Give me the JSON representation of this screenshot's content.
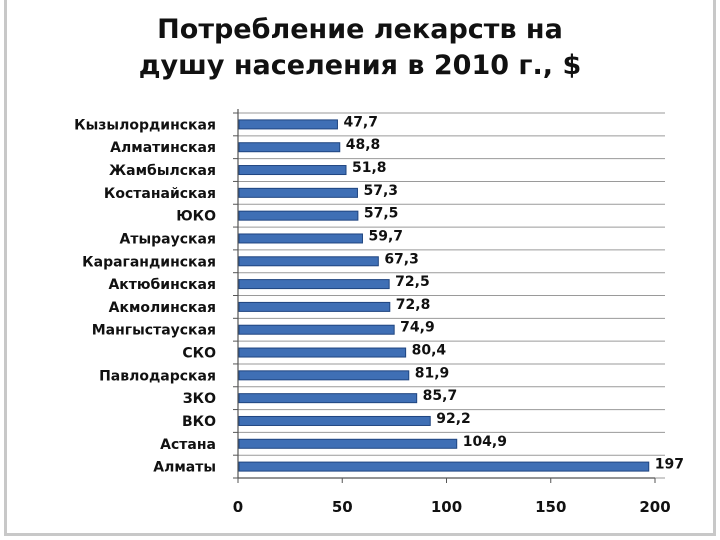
{
  "chart_data": {
    "type": "bar",
    "orientation": "horizontal",
    "title_lines": [
      "Потребление лекарств на",
      "душу населения в 2010 г., $"
    ],
    "categories": [
      "Кызылординская",
      "Алматинская",
      "Жамбылская",
      "Костанайская",
      "ЮКО",
      "Атырауская",
      "Карагандинская",
      "Актюбинская",
      "Акмолинская",
      "Мангыстауская",
      "СКО",
      "Павлодарская",
      "ЗКО",
      "ВКО",
      "Астана",
      "Алматы"
    ],
    "values": [
      47.7,
      48.8,
      51.8,
      57.3,
      57.5,
      59.7,
      67.3,
      72.5,
      72.8,
      74.9,
      80.4,
      81.9,
      85.7,
      92.2,
      104.9,
      197
    ],
    "value_labels": [
      "47,7",
      "48,8",
      "51,8",
      "57,3",
      "57,5",
      "59,7",
      "67,3",
      "72,5",
      "72,8",
      "74,9",
      "80,4",
      "81,9",
      "85,7",
      "92,2",
      "104,9",
      "197"
    ],
    "xlim": [
      0,
      200
    ],
    "xticks": [
      0,
      50,
      100,
      150,
      200
    ],
    "grid": true,
    "legend": "none",
    "bar_color": "#3f6fb5",
    "bar_edge_color": "#1f4580"
  }
}
